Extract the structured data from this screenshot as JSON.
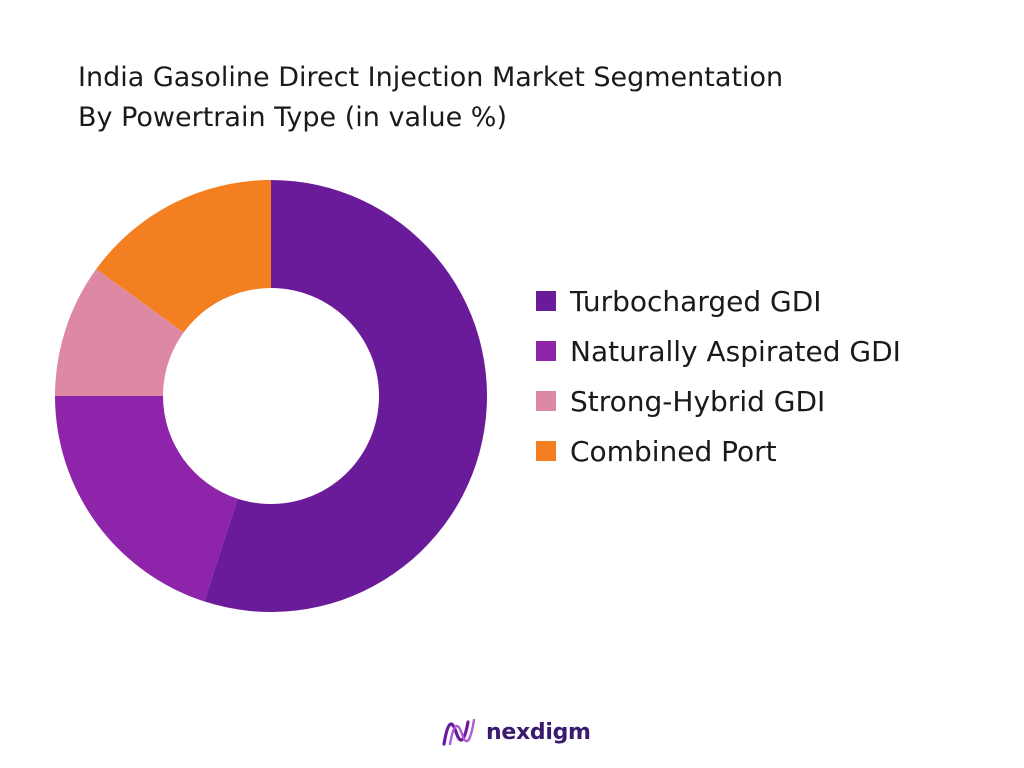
{
  "chart_data": {
    "type": "pie",
    "variant": "donut",
    "title_lines": [
      "India Gasoline Direct Injection Market Segmentation",
      "By Powertrain Type (in value %)"
    ],
    "categories": [
      "Turbocharged GDI",
      "Naturally Aspirated GDI",
      "Strong-Hybrid GDI",
      "Combined Port"
    ],
    "values": [
      55,
      20,
      10,
      15
    ],
    "colors": [
      "#6a1b9a",
      "#8e24aa",
      "#de89a4",
      "#f47f20"
    ],
    "legend_position": "right"
  },
  "branding": {
    "logo_text": "nexdigm",
    "logo_colors": [
      "#6a1b9a",
      "#b05ad8"
    ]
  }
}
